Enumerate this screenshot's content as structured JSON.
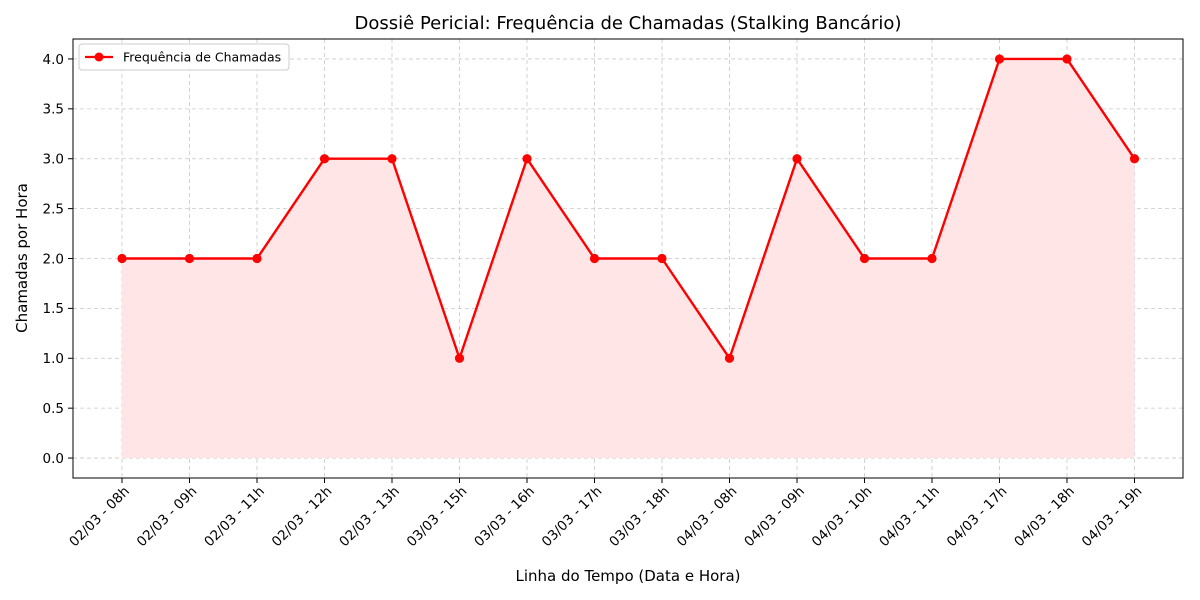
{
  "colors": {
    "line": "#ff0000",
    "fill": "#ffe5e5",
    "grid": "#c8c8c8",
    "axis": "#000000"
  },
  "chart_data": {
    "type": "line",
    "title": "Dossiê Pericial: Frequência de Chamadas (Stalking Bancário)",
    "xlabel": "Linha do Tempo (Data e Hora)",
    "ylabel": "Chamadas por Hora",
    "categories": [
      "02/03 - 08h",
      "02/03 - 09h",
      "02/03 - 11h",
      "02/03 - 12h",
      "02/03 - 13h",
      "03/03 - 15h",
      "03/03 - 16h",
      "03/03 - 17h",
      "03/03 - 18h",
      "04/03 - 08h",
      "04/03 - 09h",
      "04/03 - 10h",
      "04/03 - 11h",
      "04/03 - 17h",
      "04/03 - 18h",
      "04/03 - 19h"
    ],
    "series": [
      {
        "name": "Frequência de Chamadas",
        "values": [
          2,
          2,
          2,
          3,
          3,
          1,
          3,
          2,
          2,
          1,
          3,
          2,
          2,
          4,
          4,
          3
        ],
        "marker": "circle",
        "filled_area": true
      }
    ],
    "ylim": [
      -0.2,
      4.2
    ],
    "yticks": [
      "0.0",
      "0.5",
      "1.0",
      "1.5",
      "2.0",
      "2.5",
      "3.0",
      "3.5",
      "4.0"
    ],
    "ytick_values": [
      0,
      0.5,
      1,
      1.5,
      2,
      2.5,
      3,
      3.5,
      4
    ],
    "grid": true,
    "grid_style": "dashed",
    "legend_position": "upper-left"
  }
}
